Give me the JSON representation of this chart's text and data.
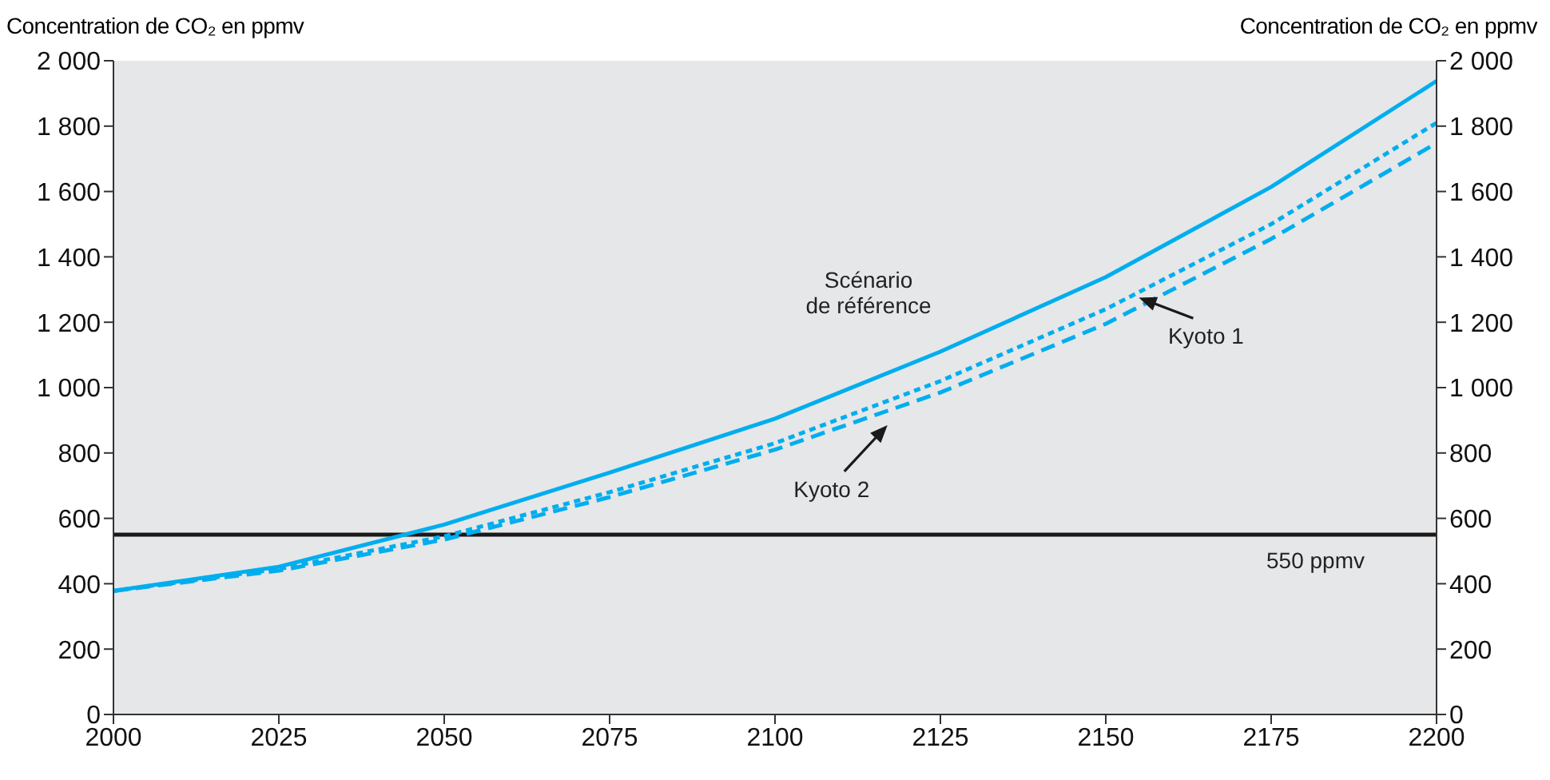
{
  "chart_data": {
    "type": "line",
    "ylabel": "Concentration de CO₂ en ppmv",
    "y2label": "Concentration de CO₂ en ppmv",
    "x": [
      2000,
      2025,
      2050,
      2075,
      2100,
      2125,
      2150,
      2175,
      2200
    ],
    "series": [
      {
        "color": "#00aeef",
        "line_style": "solid",
        "values": [
          378,
          452,
          581,
          740,
          905,
          1110,
          1338,
          1614,
          1938
        ]
      },
      {
        "color": "#00aeef",
        "line_style": "dotted",
        "values": [
          378,
          445,
          545,
          680,
          830,
          1020,
          1240,
          1500,
          1810
        ]
      },
      {
        "color": "#00aeef",
        "line_style": "dashed",
        "values": [
          378,
          440,
          535,
          665,
          810,
          985,
          1195,
          1455,
          1748
        ]
      }
    ],
    "annotations": [
      {
        "text": "Scénario de référence",
        "x": 2125,
        "y": 1110
      },
      {
        "text": "Kyoto 1",
        "x": 2155,
        "y": 1290
      },
      {
        "text": "Kyoto 2",
        "x": 2117,
        "y": 900
      }
    ],
    "xlim": [
      2000,
      2200
    ],
    "xticks": [
      2000,
      2025,
      2050,
      2075,
      2100,
      2125,
      2150,
      2175,
      2200
    ],
    "ylim": [
      0,
      2000
    ],
    "yticks": [
      0,
      200,
      400,
      600,
      800,
      {
        "value": 1000,
        "label": "1 000"
      },
      {
        "value": 1200,
        "label": "1 200"
      },
      {
        "value": 1400,
        "label": "1 400"
      },
      {
        "value": 1600,
        "label": "1 600"
      },
      {
        "value": 1800,
        "label": "1 800"
      },
      {
        "value": 2000,
        "label": "2 000"
      }
    ],
    "y2lim": [
      0,
      2000
    ],
    "y2ticks": [
      0,
      200,
      400,
      600,
      800,
      {
        "value": 1000,
        "label": "1 000"
      },
      {
        "value": 1200,
        "label": "1 200"
      },
      {
        "value": 1400,
        "label": "1 400"
      },
      {
        "value": 1600,
        "label": "1 600"
      },
      {
        "value": 1800,
        "label": "1 800"
      },
      {
        "value": 2000,
        "label": "2 000"
      }
    ],
    "ref_lines": [
      {
        "axis": "y",
        "value": 550,
        "label": "550 ppmv",
        "color": "#1a1a1a"
      }
    ],
    "grid": false,
    "marker": "none"
  }
}
